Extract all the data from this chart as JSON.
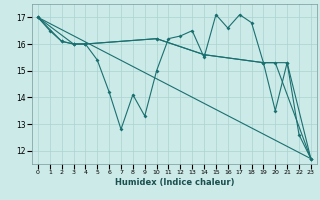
{
  "xlabel": "Humidex (Indice chaleur)",
  "bg_color": "#cceae8",
  "grid_color": "#aad4d0",
  "line_color": "#1a7070",
  "xlim": [
    -0.5,
    23.5
  ],
  "ylim": [
    11.5,
    17.5
  ],
  "yticks": [
    12,
    13,
    14,
    15,
    16,
    17
  ],
  "xticks": [
    0,
    1,
    2,
    3,
    4,
    5,
    6,
    7,
    8,
    9,
    10,
    11,
    12,
    13,
    14,
    15,
    16,
    17,
    18,
    19,
    20,
    21,
    22,
    23
  ],
  "series1": [
    [
      0,
      17.0
    ],
    [
      1,
      16.5
    ],
    [
      2,
      16.1
    ],
    [
      3,
      16.0
    ],
    [
      4,
      16.0
    ],
    [
      5,
      15.4
    ],
    [
      6,
      14.2
    ],
    [
      7,
      12.8
    ],
    [
      8,
      14.1
    ],
    [
      9,
      13.3
    ],
    [
      10,
      15.0
    ],
    [
      11,
      16.2
    ],
    [
      12,
      16.3
    ],
    [
      13,
      16.5
    ],
    [
      14,
      15.5
    ],
    [
      15,
      17.1
    ],
    [
      16,
      16.6
    ],
    [
      17,
      17.1
    ],
    [
      18,
      16.8
    ],
    [
      19,
      15.3
    ],
    [
      20,
      13.5
    ],
    [
      21,
      15.3
    ],
    [
      22,
      12.6
    ],
    [
      23,
      11.7
    ]
  ],
  "series2": [
    [
      0,
      17.0
    ],
    [
      2,
      16.1
    ],
    [
      3,
      16.0
    ],
    [
      4,
      16.0
    ],
    [
      10,
      16.2
    ],
    [
      14,
      15.6
    ],
    [
      19,
      15.3
    ],
    [
      20,
      15.3
    ],
    [
      23,
      11.7
    ]
  ],
  "series3": [
    [
      0,
      17.0
    ],
    [
      3,
      16.0
    ],
    [
      4,
      16.0
    ],
    [
      10,
      16.2
    ],
    [
      14,
      15.6
    ],
    [
      19,
      15.3
    ],
    [
      21,
      15.3
    ],
    [
      23,
      11.7
    ]
  ],
  "series4": [
    [
      0,
      17.0
    ],
    [
      23,
      11.7
    ]
  ]
}
